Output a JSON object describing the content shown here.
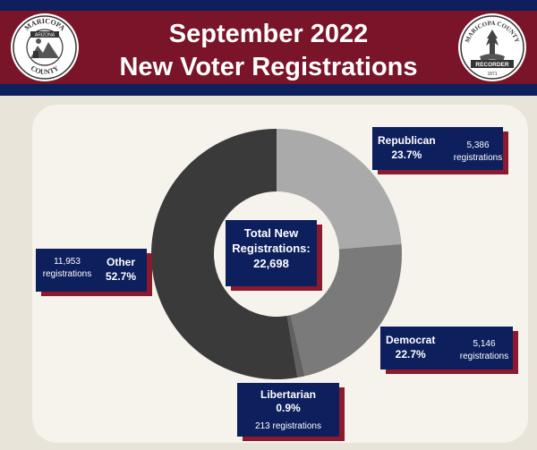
{
  "header": {
    "title_line1": "September 2022",
    "title_line2": "New Voter Registrations",
    "left_seal": {
      "top_text": "MARICOPA",
      "bottom_text": "COUNTY",
      "inner_text": "ARIZONA"
    },
    "right_seal": {
      "top_text": "MARICOPA COUNTY",
      "banner_text": "RECORDER",
      "year_text": "1871"
    }
  },
  "colors": {
    "navy": "#0d1f5c",
    "maroon": "#7a1428",
    "shadow_red": "#8b1a2e",
    "background": "#e9e4da",
    "panel": "#f6f3ec"
  },
  "chart_data": {
    "type": "pie",
    "subtype": "donut",
    "center_label": {
      "line1": "Total New",
      "line2": "Registrations:",
      "value": "22,698"
    },
    "slices": [
      {
        "name": "Republican",
        "percent_label": "23.7%",
        "count_label": "5,386",
        "unit_label": "registrations",
        "value": 5386,
        "percent": 23.7,
        "color": "#aaaaaa"
      },
      {
        "name": "Democrat",
        "percent_label": "22.7%",
        "count_label": "5,146",
        "unit_label": "registrations",
        "value": 5146,
        "percent": 22.7,
        "color": "#7a7a7a"
      },
      {
        "name": "Libertarian",
        "percent_label": "0.9%",
        "count_label": "213 registrations",
        "value": 213,
        "percent": 0.9,
        "color": "#606060"
      },
      {
        "name": "Other",
        "percent_label": "52.7%",
        "count_label": "11,953",
        "unit_label": "registrations",
        "value": 11953,
        "percent": 52.7,
        "color": "#3a3a3a"
      }
    ]
  }
}
